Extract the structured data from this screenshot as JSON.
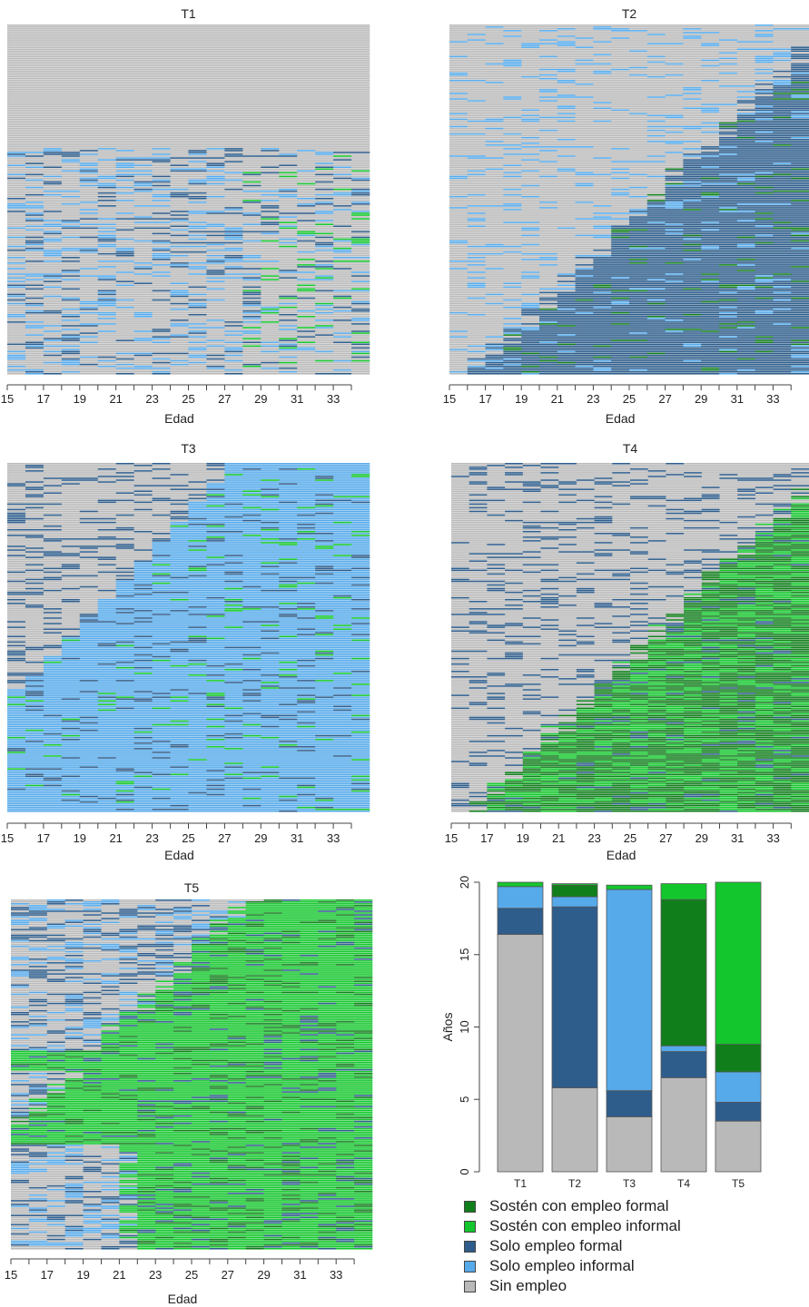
{
  "colors": {
    "sin_empleo": "#b9b9b9",
    "solo_informal": "#56aaea",
    "solo_formal": "#2e5d8b",
    "sosten_informal": "#14c62d",
    "sosten_formal": "#117e1c"
  },
  "chart_data": [
    {
      "type": "heatmap",
      "title": "T1",
      "xlabel": "Edad",
      "x_ticks": [
        15,
        17,
        19,
        21,
        23,
        25,
        27,
        29,
        31,
        33
      ],
      "x_range": [
        15,
        35
      ],
      "dominant_state": "Sin empleo"
    },
    {
      "type": "heatmap",
      "title": "T2",
      "xlabel": "Edad",
      "x_ticks": [
        15,
        17,
        19,
        21,
        23,
        25,
        27,
        29,
        31,
        33
      ],
      "x_range": [
        15,
        35
      ],
      "dominant_state": "Solo empleo formal"
    },
    {
      "type": "heatmap",
      "title": "T3",
      "xlabel": "Edad",
      "x_ticks": [
        15,
        17,
        19,
        21,
        23,
        25,
        27,
        29,
        31,
        33
      ],
      "x_range": [
        15,
        35
      ],
      "dominant_state": "Solo empleo informal"
    },
    {
      "type": "heatmap",
      "title": "T4",
      "xlabel": "Edad",
      "x_ticks": [
        15,
        17,
        19,
        21,
        23,
        25,
        27,
        29,
        31,
        33
      ],
      "x_range": [
        15,
        35
      ],
      "dominant_state": "Sostén con empleo formal"
    },
    {
      "type": "heatmap",
      "title": "T5",
      "xlabel": "Edad",
      "x_ticks": [
        15,
        17,
        19,
        21,
        23,
        25,
        27,
        29,
        31,
        33
      ],
      "x_range": [
        15,
        35
      ],
      "dominant_state": "Sostén con empleo informal"
    },
    {
      "type": "bar",
      "stacked": true,
      "categories": [
        "T1",
        "T2",
        "T3",
        "T4",
        "T5"
      ],
      "ylabel": "Años",
      "ylim": [
        0,
        20
      ],
      "y_ticks": [
        0,
        5,
        10,
        15,
        20
      ],
      "series": [
        {
          "name": "Sin empleo",
          "values": [
            16.4,
            5.8,
            3.8,
            6.5,
            3.5
          ]
        },
        {
          "name": "Solo empleo formal",
          "values": [
            1.8,
            12.5,
            1.8,
            1.8,
            1.3
          ]
        },
        {
          "name": "Solo empleo informal",
          "values": [
            1.5,
            0.7,
            13.9,
            0.4,
            2.1
          ]
        },
        {
          "name": "Sostén con empleo formal",
          "values": [
            0.0,
            0.8,
            0.0,
            10.1,
            1.9
          ]
        },
        {
          "name": "Sostén con empleo informal",
          "values": [
            0.3,
            0.1,
            0.3,
            1.1,
            11.2
          ]
        }
      ],
      "legend_order": [
        "Sostén con empleo formal",
        "Sostén con empleo informal",
        "Solo empleo formal",
        "Solo empleo informal",
        "Sin empleo"
      ]
    }
  ]
}
